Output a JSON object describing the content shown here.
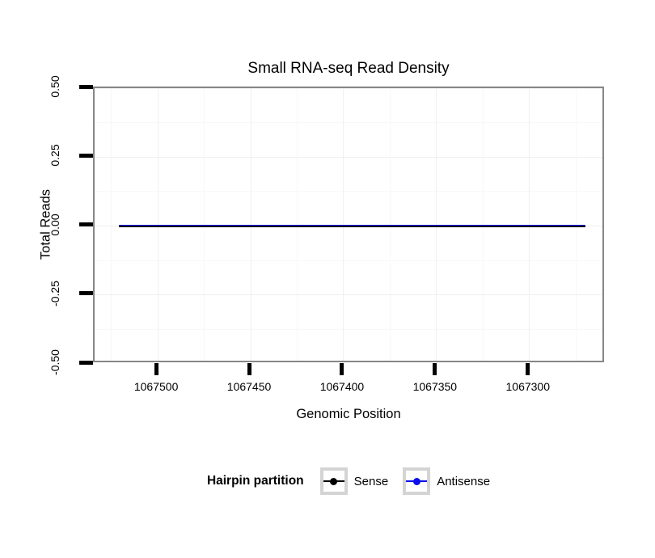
{
  "chart_data": {
    "type": "line",
    "title": "Small RNA-seq Read Density",
    "xlabel": "Genomic Position",
    "ylabel": "Total Reads",
    "x_axis_reversed": true,
    "xlim": [
      1067534,
      1067259
    ],
    "ylim": [
      -0.5,
      0.5
    ],
    "x_ticks": [
      {
        "value": 1067500,
        "label": "1067500"
      },
      {
        "value": 1067450,
        "label": "1067450"
      },
      {
        "value": 1067400,
        "label": "1067400"
      },
      {
        "value": 1067350,
        "label": "1067350"
      },
      {
        "value": 1067300,
        "label": "1067300"
      }
    ],
    "y_ticks": [
      {
        "value": 0.5,
        "label": "0.50"
      },
      {
        "value": 0.25,
        "label": "0.25"
      },
      {
        "value": 0.0,
        "label": "0.00"
      },
      {
        "value": -0.25,
        "label": "-0.25"
      },
      {
        "value": -0.5,
        "label": "-0.50"
      }
    ],
    "grid": {
      "show_major": true,
      "show_minor": true
    },
    "legend": {
      "title": "Hairpin partition",
      "position": "bottom"
    },
    "series": [
      {
        "name": "Sense",
        "color": "#000000",
        "line_width": 2,
        "x": [
          1067521,
          1067270
        ],
        "y": [
          0,
          0
        ]
      },
      {
        "name": "Antisense",
        "color": "#0d0dee",
        "line_width": 3.5,
        "x": [
          1067521,
          1067270
        ],
        "y": [
          0,
          0
        ]
      }
    ],
    "colors": {
      "panel_border": "#868686",
      "axis_tick": "#000000",
      "grid_major": "#f0f0f0",
      "grid_minor": "#f8f8f8",
      "legend_key_border": "#d4d4d4",
      "background": "#ffffff"
    }
  }
}
